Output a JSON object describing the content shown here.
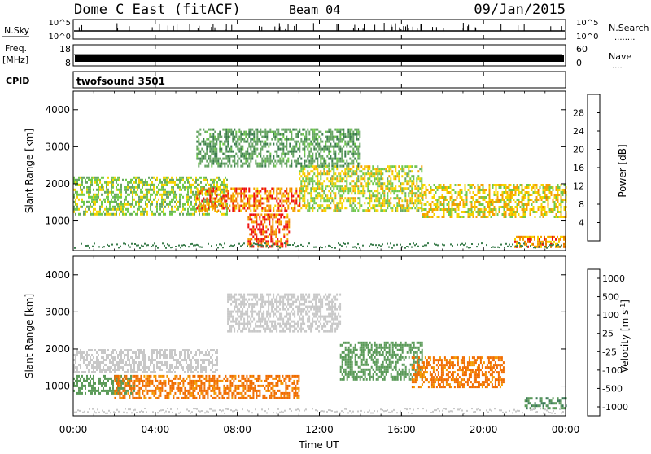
{
  "header": {
    "station": "Dome C East (fitACF)",
    "beam": "Beam 04",
    "date": "09/Jan/2015"
  },
  "housekeeping": {
    "nsky_label": "N.Sky",
    "nsearch_label": "N.Search",
    "nsearch_dots": "........",
    "freq_label": "Freq.",
    "freq_unit": "[MHz]",
    "nave_label": "Nave",
    "nave_dots": "....",
    "cpid_label": "CPID",
    "cpid_value": "twofsound 3501",
    "log_ticks_left": [
      "10^5",
      "10^0"
    ],
    "log_ticks_right": [
      "10^5",
      "10^0"
    ],
    "freq_ticks": [
      "18",
      "8"
    ],
    "nave_ticks": [
      "60",
      "0"
    ]
  },
  "time_axis": {
    "label": "Time UT",
    "ticks": [
      "00:00",
      "04:00",
      "08:00",
      "12:00",
      "16:00",
      "20:00",
      "00:00"
    ]
  },
  "colors": {
    "power_scale": [
      "#0000ff",
      "#214fa8",
      "#3b7d4c",
      "#67a564",
      "#6fc94a",
      "#f5d400",
      "#f5a100",
      "#f07a00",
      "#ee1010"
    ],
    "velocity_scale": [
      "#1e3cc8",
      "#2a57a8",
      "#3a7a55",
      "#5a9a58",
      "#66c03c",
      "#c8c8c8",
      "#f5c200",
      "#f49a00",
      "#f06d00",
      "#ec4a00",
      "#e31a1c"
    ]
  },
  "chart_data": [
    {
      "type": "heatmap",
      "title": "",
      "xlabel": "Time UT",
      "ylabel": "Slant Range [km]",
      "xlim": [
        "00:00",
        "24:00"
      ],
      "ylim": [
        200,
        4500
      ],
      "yticks": [
        "1000",
        "2000",
        "3000",
        "4000"
      ],
      "colorbar": {
        "label": "Power [dB]",
        "ticks": [
          "4",
          "8",
          "12",
          "16",
          "20",
          "24",
          "28"
        ],
        "range": [
          0,
          32
        ]
      },
      "echo_regions": [
        {
          "time_start": "00:00",
          "time_end": "07:30",
          "range_start": 1200,
          "range_end": 2200,
          "power_db": 16
        },
        {
          "time_start": "06:00",
          "time_end": "11:00",
          "range_start": 1300,
          "range_end": 1900,
          "power_db": 26
        },
        {
          "time_start": "08:30",
          "time_end": "10:30",
          "range_start": 300,
          "range_end": 1200,
          "power_db": 28
        },
        {
          "time_start": "11:00",
          "time_end": "17:00",
          "range_start": 1300,
          "range_end": 2500,
          "power_db": 18
        },
        {
          "time_start": "06:00",
          "time_end": "14:00",
          "range_start": 2500,
          "range_end": 3500,
          "power_db": 12
        },
        {
          "time_start": "17:00",
          "time_end": "24:00",
          "range_start": 1100,
          "range_end": 2000,
          "power_db": 20
        },
        {
          "time_start": "21:30",
          "time_end": "24:00",
          "range_start": 300,
          "range_end": 600,
          "power_db": 24
        }
      ]
    },
    {
      "type": "heatmap",
      "title": "",
      "xlabel": "Time UT",
      "ylabel": "Slant Range [km]",
      "xlim": [
        "00:00",
        "24:00"
      ],
      "ylim": [
        200,
        4500
      ],
      "yticks": [
        "1000",
        "2000",
        "3000",
        "4000"
      ],
      "colorbar": {
        "label": "Velocity [m s^-1]",
        "ticks": [
          "1000",
          "500",
          "100",
          "25",
          "-25",
          "-100",
          "-500",
          "-1000"
        ]
      },
      "echo_regions": [
        {
          "time_start": "00:00",
          "time_end": "07:00",
          "range_start": 1400,
          "range_end": 2000,
          "velocity": 0
        },
        {
          "time_start": "00:00",
          "time_end": "03:00",
          "range_start": 800,
          "range_end": 1300,
          "velocity": 150
        },
        {
          "time_start": "02:00",
          "time_end": "11:00",
          "range_start": 700,
          "range_end": 1300,
          "velocity": -300
        },
        {
          "time_start": "07:30",
          "time_end": "13:00",
          "range_start": 2500,
          "range_end": 3500,
          "velocity": 0
        },
        {
          "time_start": "13:00",
          "time_end": "17:00",
          "range_start": 1200,
          "range_end": 2200,
          "velocity": 150
        },
        {
          "time_start": "16:30",
          "time_end": "21:00",
          "range_start": 1000,
          "range_end": 1800,
          "velocity": -300
        },
        {
          "time_start": "22:00",
          "time_end": "24:00",
          "range_start": 400,
          "range_end": 700,
          "velocity": 250
        }
      ]
    }
  ]
}
